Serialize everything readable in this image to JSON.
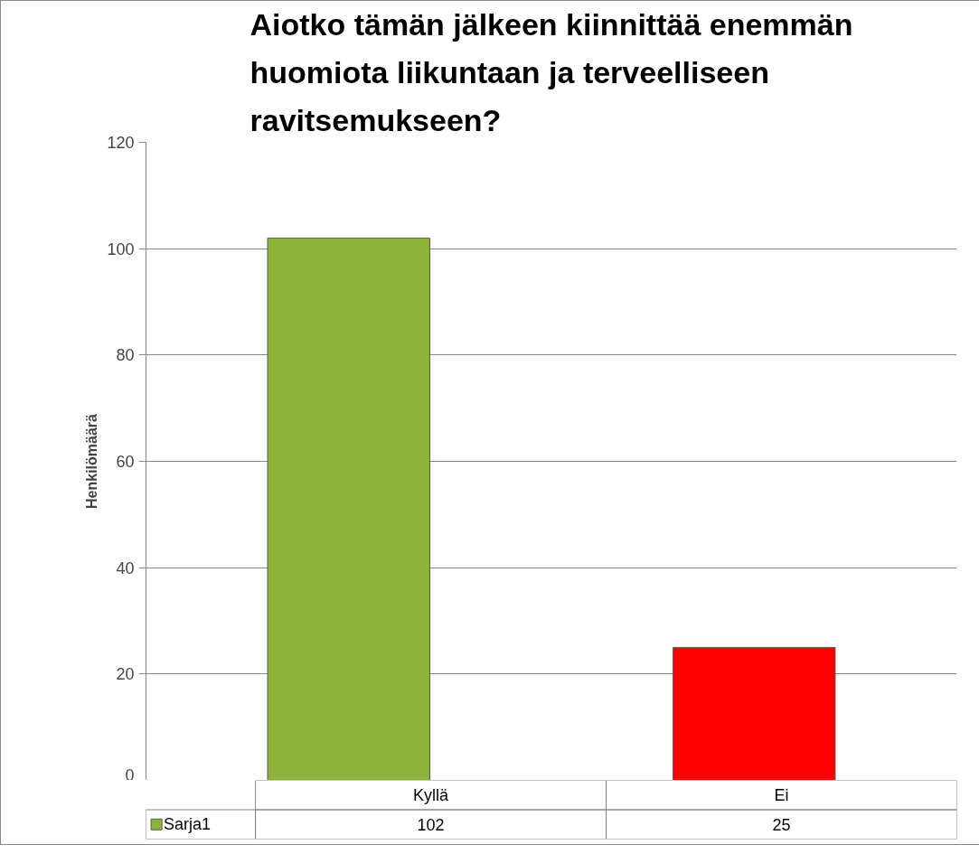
{
  "chart_data": {
    "type": "bar",
    "title": "Aiotko tämän jälkeen kiinnittää enemmän huomiota liikuntaan ja terveelliseen ravitsemukseen?",
    "ylabel": "Henkilömäärä",
    "categories": [
      "Kyllä",
      "Ei"
    ],
    "series": [
      {
        "name": "Sarja1",
        "color": "#8db33a",
        "colors": [
          "#8db33a",
          "#ff0000"
        ],
        "values": [
          102,
          25
        ]
      }
    ],
    "ylim": [
      0,
      120
    ],
    "yticks": [
      0,
      20,
      40,
      60,
      80,
      100,
      120
    ],
    "grid": "y",
    "legend": "bottom",
    "data_labels": true
  }
}
